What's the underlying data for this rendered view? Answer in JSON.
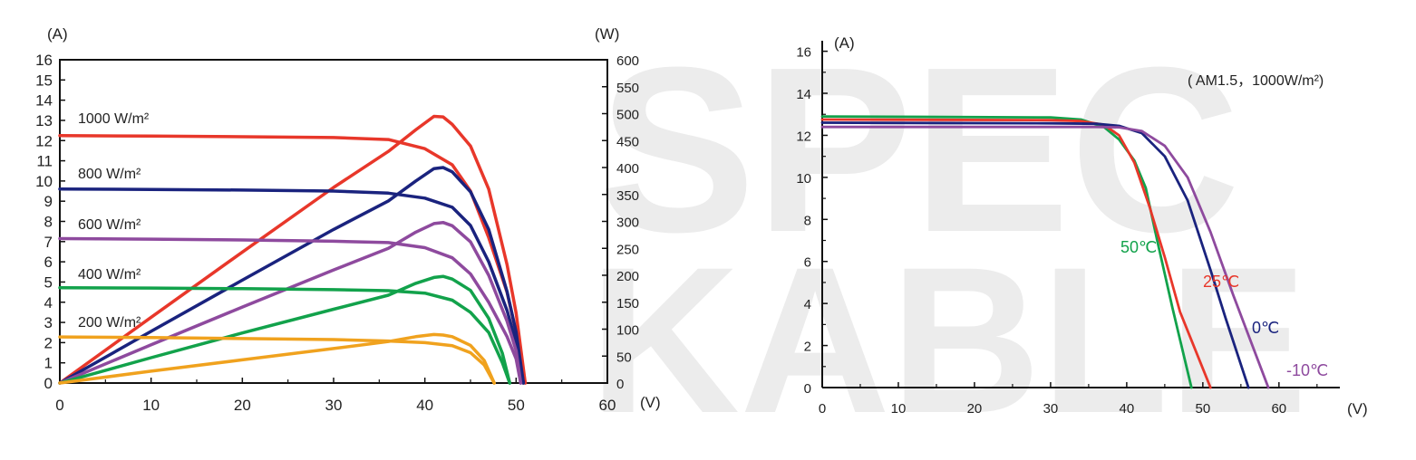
{
  "watermark": {
    "line1": "SPEC",
    "line2": "KABLE"
  },
  "chart_data": [
    {
      "type": "line",
      "xlabel": "(V)",
      "ylabel": "(A)",
      "y2label": "(W)",
      "xlim": [
        0,
        60
      ],
      "ylim": [
        0,
        16
      ],
      "y2lim": [
        0,
        600
      ],
      "xticks": [
        0,
        10,
        20,
        30,
        40,
        50,
        60
      ],
      "yticks": [
        0,
        1,
        2,
        3,
        4,
        5,
        6,
        7,
        8,
        9,
        10,
        11,
        12,
        13,
        14,
        15,
        16
      ],
      "y2ticks": [
        0,
        50,
        100,
        150,
        200,
        250,
        300,
        350,
        400,
        450,
        500,
        550,
        600
      ],
      "grid": false,
      "series": [
        {
          "name": "1000 W/m²",
          "color": "#e8372a",
          "kind": "current",
          "points": [
            [
              0,
              12.25
            ],
            [
              10,
              12.22
            ],
            [
              20,
              12.19
            ],
            [
              30,
              12.15
            ],
            [
              36,
              12.05
            ],
            [
              40,
              11.6
            ],
            [
              43,
              10.8
            ],
            [
              45,
              9.5
            ],
            [
              47,
              7.2
            ],
            [
              49,
              4.5
            ],
            [
              50,
              2.5
            ],
            [
              51,
              0
            ]
          ]
        },
        {
          "name": "1000 W/m²",
          "color": "#e8372a",
          "kind": "power",
          "points": [
            [
              0,
              0
            ],
            [
              10,
              122
            ],
            [
              20,
              243
            ],
            [
              30,
              363
            ],
            [
              36,
              430
            ],
            [
              39,
              470
            ],
            [
              41,
              495
            ],
            [
              42,
              494
            ],
            [
              43,
              480
            ],
            [
              45,
              440
            ],
            [
              47,
              360
            ],
            [
              49,
              220
            ],
            [
              50,
              130
            ],
            [
              51,
              0
            ]
          ]
        },
        {
          "name": "800 W/m²",
          "color": "#1a237e",
          "kind": "current",
          "points": [
            [
              0,
              9.6
            ],
            [
              10,
              9.58
            ],
            [
              20,
              9.55
            ],
            [
              30,
              9.5
            ],
            [
              36,
              9.4
            ],
            [
              40,
              9.15
            ],
            [
              43,
              8.7
            ],
            [
              45,
              7.8
            ],
            [
              47,
              6.0
            ],
            [
              49,
              3.6
            ],
            [
              50,
              2.0
            ],
            [
              50.8,
              0
            ]
          ]
        },
        {
          "name": "800 W/m²",
          "color": "#1a237e",
          "kind": "power",
          "points": [
            [
              0,
              0
            ],
            [
              10,
              96
            ],
            [
              20,
              191
            ],
            [
              30,
              285
            ],
            [
              36,
              338
            ],
            [
              39,
              375
            ],
            [
              41,
              398
            ],
            [
              42,
              400
            ],
            [
              43,
              392
            ],
            [
              45,
              355
            ],
            [
              47,
              285
            ],
            [
              49,
              170
            ],
            [
              50,
              95
            ],
            [
              50.8,
              0
            ]
          ]
        },
        {
          "name": "600 W/m²",
          "color": "#8e4a9e",
          "kind": "current",
          "points": [
            [
              0,
              7.15
            ],
            [
              10,
              7.12
            ],
            [
              20,
              7.08
            ],
            [
              30,
              7.02
            ],
            [
              36,
              6.95
            ],
            [
              40,
              6.7
            ],
            [
              43,
              6.2
            ],
            [
              45,
              5.4
            ],
            [
              47,
              4.0
            ],
            [
              49,
              2.3
            ],
            [
              50,
              1.2
            ],
            [
              50.5,
              0
            ]
          ]
        },
        {
          "name": "600 W/m²",
          "color": "#8e4a9e",
          "kind": "power",
          "points": [
            [
              0,
              0
            ],
            [
              10,
              71
            ],
            [
              20,
              141
            ],
            [
              30,
              210
            ],
            [
              36,
              250
            ],
            [
              39,
              280
            ],
            [
              41,
              296
            ],
            [
              42,
              298
            ],
            [
              43,
              292
            ],
            [
              45,
              262
            ],
            [
              47,
              200
            ],
            [
              49,
              115
            ],
            [
              50,
              60
            ],
            [
              50.5,
              0
            ]
          ]
        },
        {
          "name": "400 W/m²",
          "color": "#12a24b",
          "kind": "current",
          "points": [
            [
              0,
              4.72
            ],
            [
              10,
              4.7
            ],
            [
              20,
              4.67
            ],
            [
              30,
              4.62
            ],
            [
              36,
              4.57
            ],
            [
              40,
              4.45
            ],
            [
              43,
              4.1
            ],
            [
              45,
              3.5
            ],
            [
              47,
              2.5
            ],
            [
              48.5,
              1.0
            ],
            [
              49.3,
              0
            ]
          ]
        },
        {
          "name": "400 W/m²",
          "color": "#12a24b",
          "kind": "power",
          "points": [
            [
              0,
              0
            ],
            [
              10,
              47
            ],
            [
              20,
              93
            ],
            [
              30,
              137
            ],
            [
              36,
              163
            ],
            [
              39,
              185
            ],
            [
              41,
              196
            ],
            [
              42,
              198
            ],
            [
              43,
              193
            ],
            [
              45,
              172
            ],
            [
              47,
              120
            ],
            [
              48.5,
              55
            ],
            [
              49.3,
              0
            ]
          ]
        },
        {
          "name": "200 W/m²",
          "color": "#f0a21e",
          "kind": "current",
          "points": [
            [
              0,
              2.28
            ],
            [
              10,
              2.25
            ],
            [
              20,
              2.2
            ],
            [
              30,
              2.15
            ],
            [
              36,
              2.08
            ],
            [
              40,
              2.0
            ],
            [
              43,
              1.85
            ],
            [
              45,
              1.5
            ],
            [
              46.5,
              0.9
            ],
            [
              47.6,
              0
            ]
          ]
        },
        {
          "name": "200 W/m²",
          "color": "#f0a21e",
          "kind": "power",
          "points": [
            [
              0,
              0
            ],
            [
              10,
              22
            ],
            [
              20,
              43
            ],
            [
              30,
              64
            ],
            [
              36,
              77
            ],
            [
              39,
              86
            ],
            [
              41,
              90
            ],
            [
              42,
              89
            ],
            [
              43,
              86
            ],
            [
              45,
              70
            ],
            [
              46.5,
              42
            ],
            [
              47.6,
              0
            ]
          ]
        }
      ]
    },
    {
      "type": "line",
      "xlabel": "(V)",
      "ylabel": "(A)",
      "annotation": "( AM1.5，1000W/m²)",
      "xlim": [
        0,
        68
      ],
      "ylim": [
        0,
        16.5
      ],
      "xticks": [
        0,
        10,
        20,
        30,
        40,
        50,
        60
      ],
      "yticks": [
        0,
        2,
        4,
        6,
        8,
        10,
        12,
        14,
        16
      ],
      "grid": false,
      "series": [
        {
          "name": "50℃",
          "color": "#12a24b",
          "points": [
            [
              0,
              12.9
            ],
            [
              30,
              12.85
            ],
            [
              34,
              12.75
            ],
            [
              37,
              12.4
            ],
            [
              39,
              11.8
            ],
            [
              41,
              10.8
            ],
            [
              42.5,
              9.5
            ],
            [
              44,
              7.0
            ],
            [
              46,
              3.8
            ],
            [
              48.5,
              0
            ]
          ]
        },
        {
          "name": "25℃",
          "color": "#e8372a",
          "points": [
            [
              0,
              12.75
            ],
            [
              30,
              12.72
            ],
            [
              34,
              12.68
            ],
            [
              37,
              12.5
            ],
            [
              39,
              12.0
            ],
            [
              41,
              10.7
            ],
            [
              43,
              8.6
            ],
            [
              45,
              6.2
            ],
            [
              47,
              3.6
            ],
            [
              51,
              0
            ]
          ]
        },
        {
          "name": "0℃",
          "color": "#1a237e",
          "points": [
            [
              0,
              12.6
            ],
            [
              30,
              12.57
            ],
            [
              36,
              12.55
            ],
            [
              39,
              12.45
            ],
            [
              42,
              12.1
            ],
            [
              45,
              11.0
            ],
            [
              48,
              8.9
            ],
            [
              51,
              5.6
            ],
            [
              53,
              3.3
            ],
            [
              56,
              0
            ]
          ]
        },
        {
          "name": "-10℃",
          "color": "#8e4a9e",
          "points": [
            [
              0,
              12.4
            ],
            [
              30,
              12.4
            ],
            [
              36,
              12.4
            ],
            [
              39,
              12.38
            ],
            [
              42,
              12.2
            ],
            [
              45,
              11.5
            ],
            [
              48,
              10.0
            ],
            [
              51,
              7.4
            ],
            [
              54,
              4.4
            ],
            [
              58.6,
              0
            ]
          ]
        }
      ]
    }
  ]
}
